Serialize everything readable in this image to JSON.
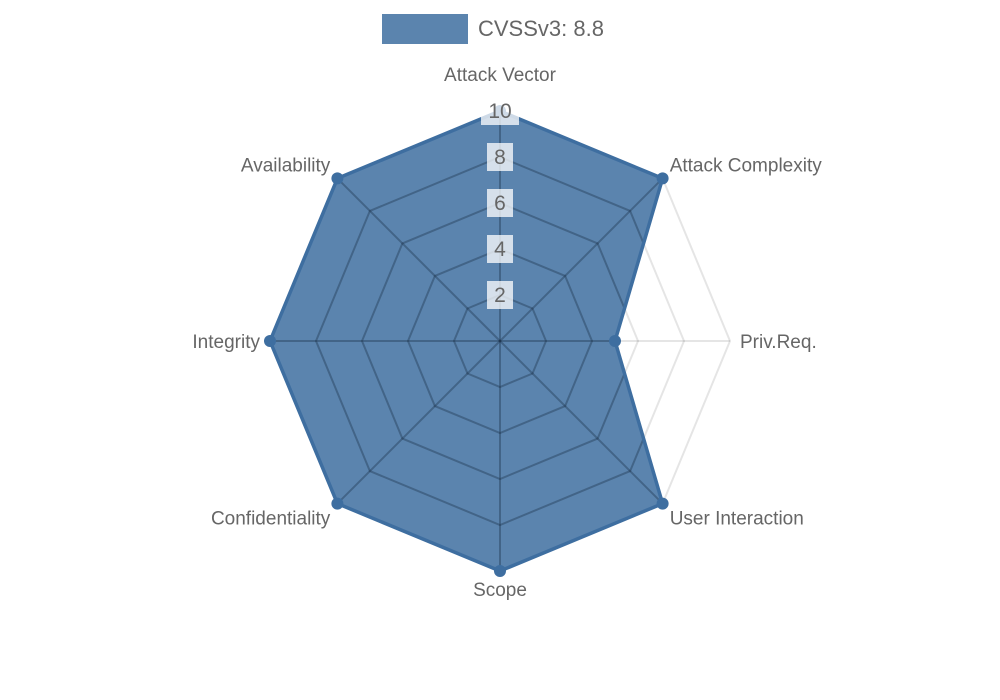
{
  "legend": {
    "label": "CVSSv3: 8.8"
  },
  "chart_data": {
    "type": "radar",
    "title": "CVSSv3: 8.8",
    "categories": [
      "Attack Vector",
      "Attack Complexity",
      "Priv.Req.",
      "User Interaction",
      "Scope",
      "Confidentiality",
      "Integrity",
      "Availability"
    ],
    "series": [
      {
        "name": "CVSSv3: 8.8",
        "values": [
          10,
          10,
          5,
          10,
          10,
          10,
          10,
          10
        ]
      }
    ],
    "rmin": 0,
    "rmax": 10,
    "ticks": [
      2,
      4,
      6,
      8,
      10
    ],
    "grid": true,
    "legend_position": "top",
    "colors": {
      "fill": "rgba(62,110,160,0.85)",
      "border": "#3e6ea0",
      "point": "#3e6ea0",
      "grid_faint": "rgba(0,0,0,0.10)",
      "grid_inner": "rgba(20,35,55,0.30)",
      "tick_backdrop": "rgba(255,255,255,0.75)",
      "label_text": "#666666",
      "tick_text": "#666666"
    }
  }
}
